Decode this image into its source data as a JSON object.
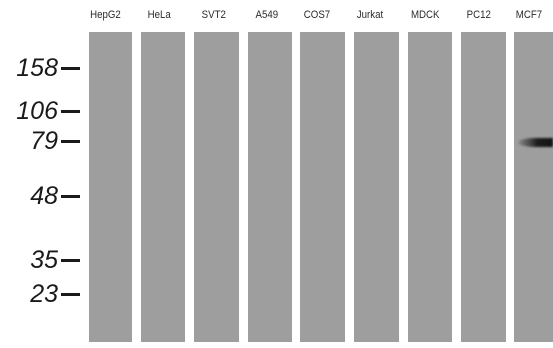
{
  "lanes": [
    {
      "label": "HepG2"
    },
    {
      "label": "HeLa"
    },
    {
      "label": "SVT2"
    },
    {
      "label": "A549"
    },
    {
      "label": "COS7"
    },
    {
      "label": "Jurkat"
    },
    {
      "label": "MDCK"
    },
    {
      "label": "PC12"
    },
    {
      "label": "MCF7"
    }
  ],
  "markers": [
    {
      "label": "158"
    },
    {
      "label": "106"
    },
    {
      "label": "79"
    },
    {
      "label": "48"
    },
    {
      "label": "35"
    },
    {
      "label": "23"
    }
  ],
  "colors": {
    "lane": "#9e9e9e",
    "band": "#111111",
    "text": "#1a1a1a"
  }
}
